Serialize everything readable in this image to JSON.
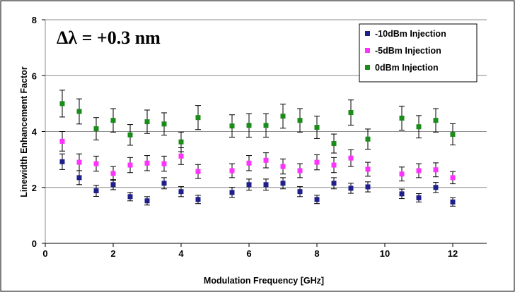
{
  "chart_data": {
    "type": "scatter",
    "annotation": "Δλ = +0.3 nm",
    "xlabel": "Modulation Frequency [GHz]",
    "ylabel": "Linewidth Enhancement Factor",
    "xlim": [
      0,
      13
    ],
    "ylim": [
      0,
      8
    ],
    "xticks": [
      "0",
      "2",
      "4",
      "6",
      "8",
      "10",
      "12"
    ],
    "yticks": [
      "0",
      "2",
      "4",
      "6",
      "8"
    ],
    "grid": "horizontal",
    "legend_position": "top-right",
    "x": [
      0.5,
      1.0,
      1.5,
      2.0,
      2.5,
      3.0,
      3.5,
      4.0,
      4.5,
      5.5,
      6.0,
      6.5,
      7.0,
      7.5,
      8.0,
      8.5,
      9.0,
      9.5,
      10.5,
      11.0,
      11.5,
      12.0
    ],
    "series": [
      {
        "name": "-10dBm Injection",
        "color": "#1f1f8c",
        "values": [
          2.92,
          2.35,
          1.88,
          2.1,
          1.67,
          1.52,
          2.15,
          1.85,
          1.57,
          1.82,
          2.1,
          2.1,
          2.15,
          1.85,
          1.57,
          2.15,
          1.97,
          2.02,
          1.77,
          1.63,
          2.0,
          1.48
        ],
        "errors": [
          0.28,
          0.25,
          0.2,
          0.18,
          0.15,
          0.15,
          0.2,
          0.18,
          0.15,
          0.18,
          0.2,
          0.2,
          0.2,
          0.18,
          0.15,
          0.2,
          0.18,
          0.18,
          0.17,
          0.15,
          0.18,
          0.15
        ]
      },
      {
        "name": "-5dBm Injection",
        "color": "#ff33ff",
        "values": [
          3.65,
          2.9,
          2.85,
          2.5,
          2.8,
          2.87,
          2.85,
          3.12,
          2.57,
          2.6,
          2.87,
          2.97,
          2.75,
          2.6,
          2.9,
          2.8,
          3.05,
          2.65,
          2.48,
          2.6,
          2.63,
          2.35
        ],
        "errors": [
          0.35,
          0.3,
          0.27,
          0.25,
          0.27,
          0.27,
          0.27,
          0.3,
          0.25,
          0.25,
          0.27,
          0.27,
          0.27,
          0.25,
          0.27,
          0.27,
          0.3,
          0.25,
          0.25,
          0.25,
          0.25,
          0.22
        ]
      },
      {
        "name": "0dBm Injection",
        "color": "#1a8c1a",
        "values": [
          5.0,
          4.72,
          4.1,
          4.4,
          3.88,
          4.35,
          4.27,
          3.63,
          4.5,
          4.2,
          4.22,
          4.22,
          4.55,
          4.4,
          4.15,
          3.57,
          4.68,
          3.73,
          4.48,
          4.17,
          4.4,
          3.9
        ],
        "errors": [
          0.48,
          0.45,
          0.4,
          0.42,
          0.37,
          0.42,
          0.4,
          0.35,
          0.43,
          0.4,
          0.42,
          0.42,
          0.43,
          0.42,
          0.4,
          0.34,
          0.45,
          0.36,
          0.43,
          0.4,
          0.42,
          0.38
        ]
      }
    ]
  }
}
